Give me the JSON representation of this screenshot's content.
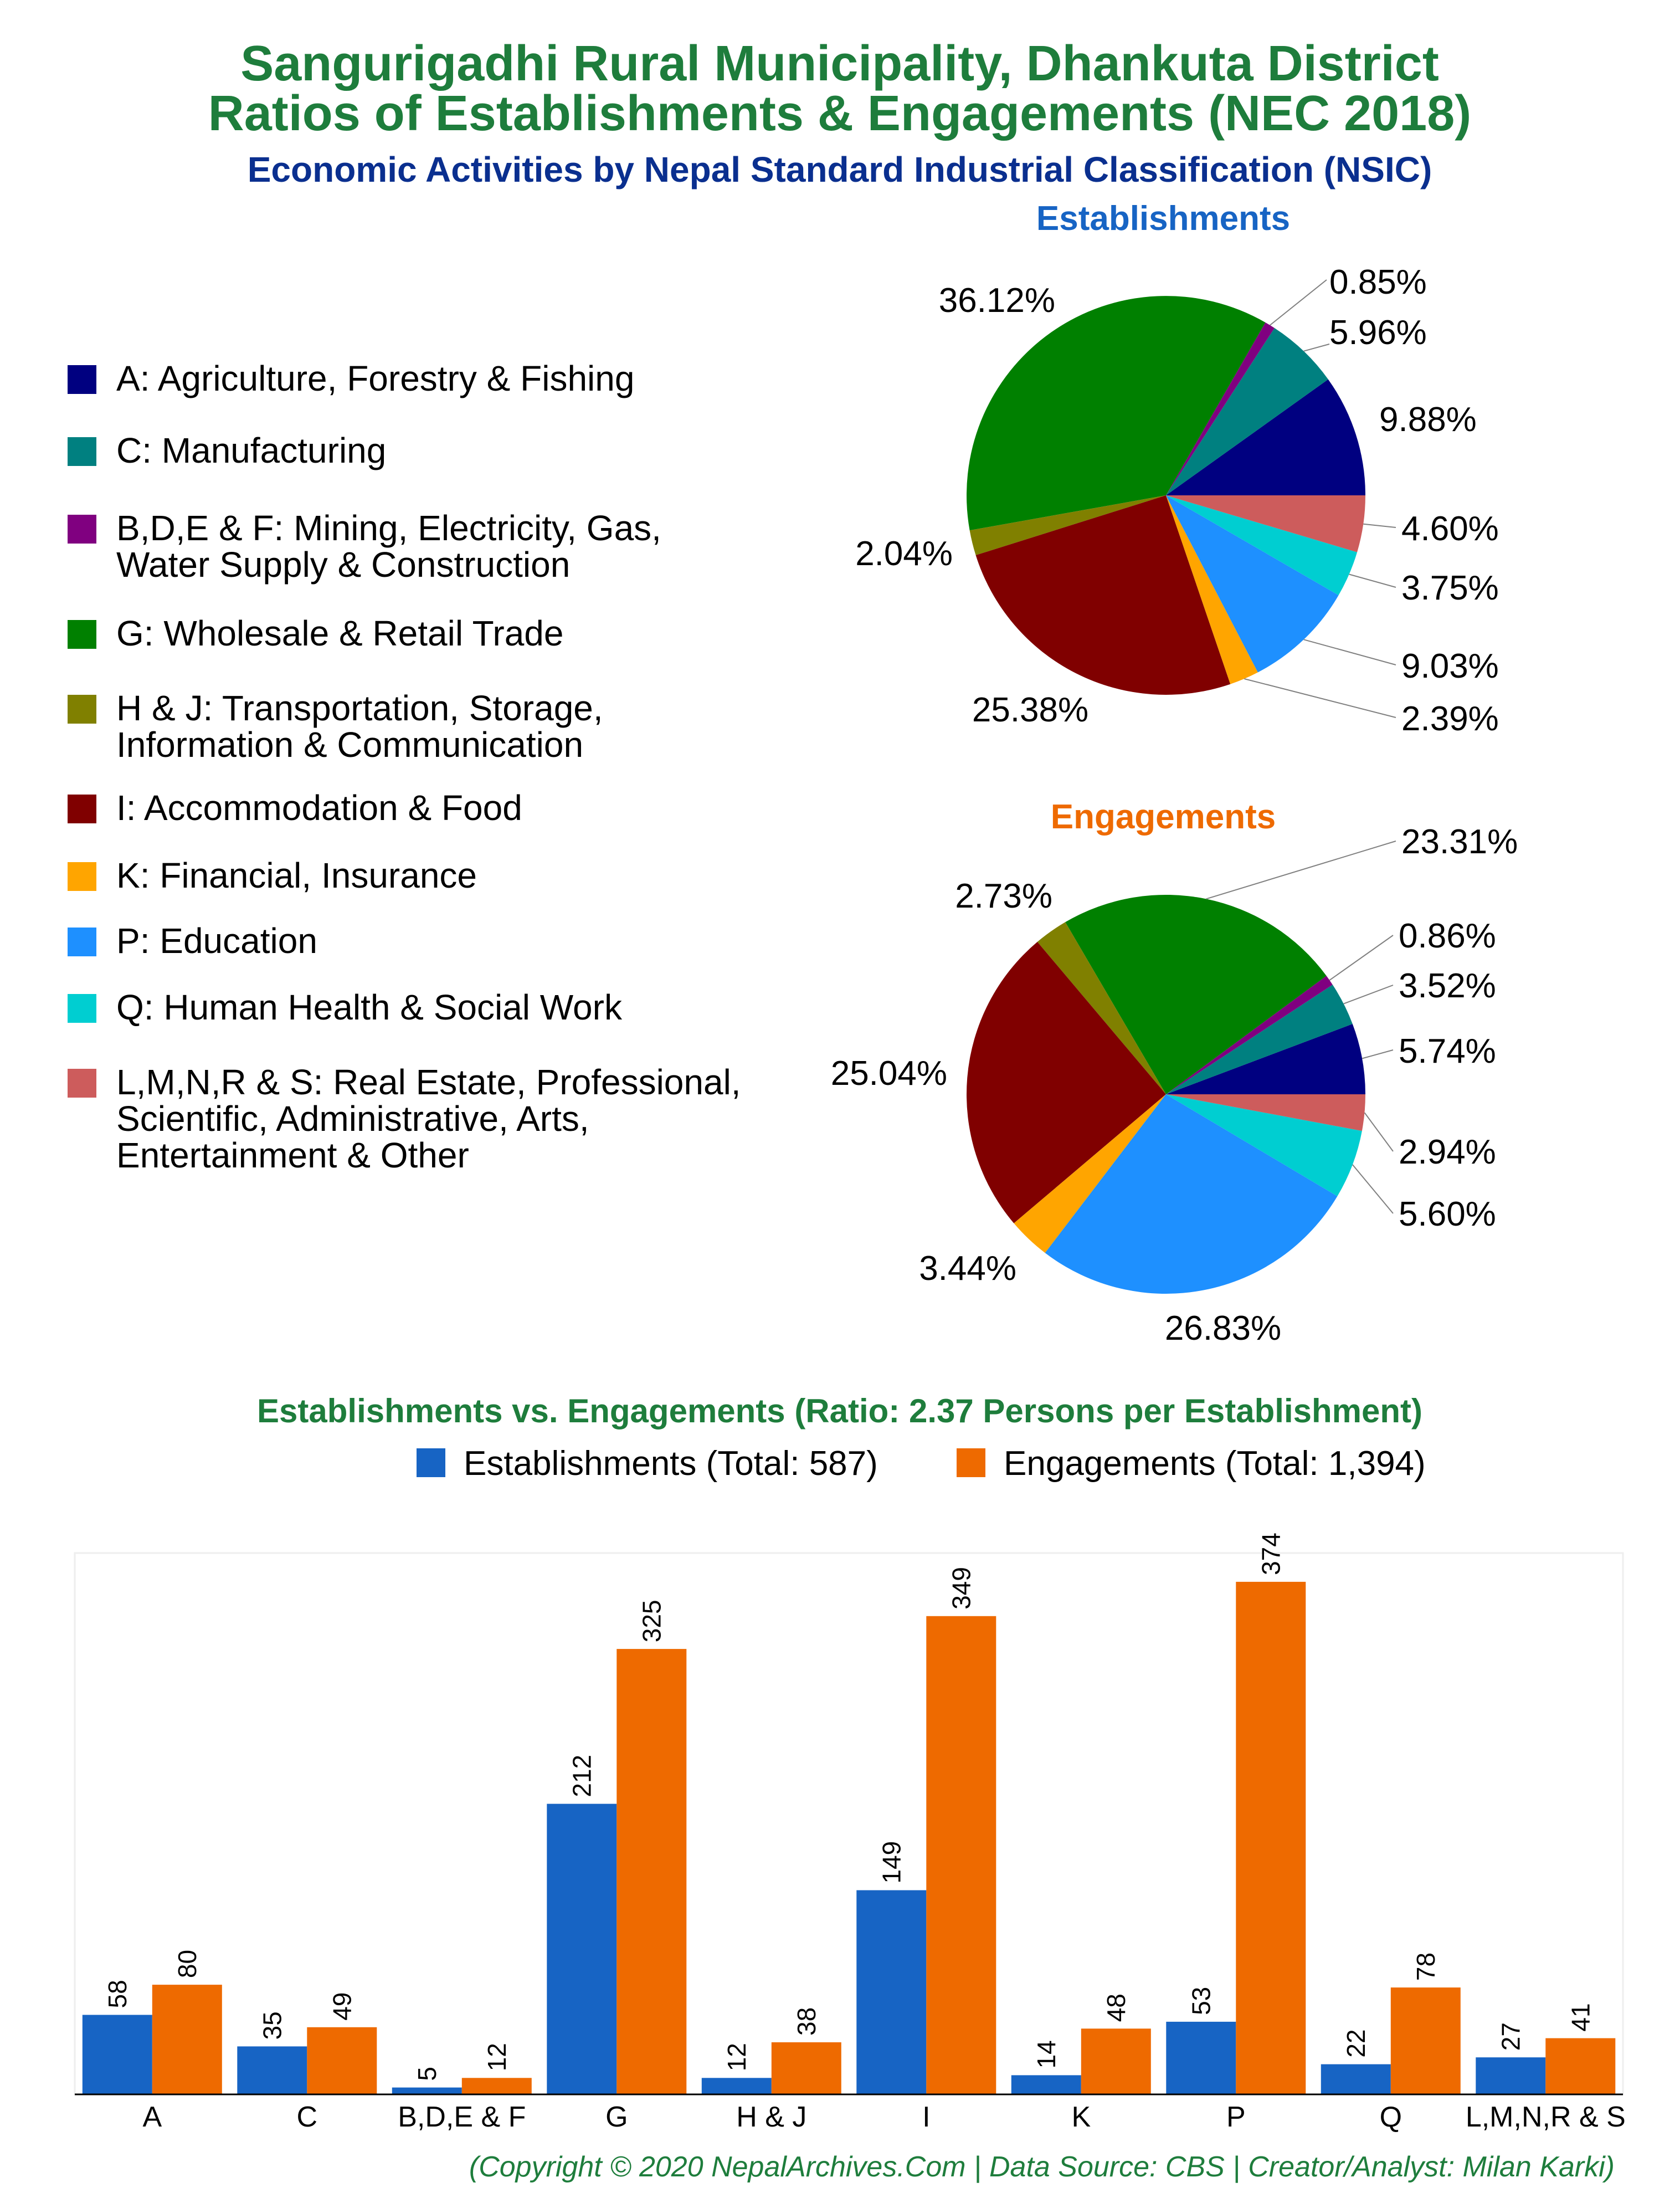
{
  "header": {
    "title_line1": "Sangurigadhi Rural Municipality, Dhankuta District",
    "title_line2": "Ratios of Establishments & Engagements (NEC 2018)",
    "subtitle": "Economic Activities by Nepal Standard Industrial Classification (NSIC)"
  },
  "colors": {
    "title": "#1e7d3c",
    "subtitle": "#0a2f8f",
    "establishments": "#1764c4",
    "engagements": "#ee6a00",
    "establishments_pie_title": "#1764c4",
    "engagements_pie_title": "#ee6a00"
  },
  "legend": [
    {
      "label": "A: Agriculture, Forestry & Fishing",
      "color": "#000080"
    },
    {
      "label": "C: Manufacturing",
      "color": "#008080"
    },
    {
      "label": "B,D,E & F: Mining, Electricity, Gas,|Water Supply & Construction",
      "color": "#800080"
    },
    {
      "label": "G: Wholesale & Retail Trade",
      "color": "#008000"
    },
    {
      "label": "H & J: Transportation, Storage,|Information & Communication",
      "color": "#808000"
    },
    {
      "label": "I: Accommodation & Food",
      "color": "#800000"
    },
    {
      "label": "K: Financial, Insurance",
      "color": "#ffa500"
    },
    {
      "label": "P: Education",
      "color": "#1e90ff"
    },
    {
      "label": "Q: Human Health & Social Work",
      "color": "#00ced1"
    },
    {
      "label": "L,M,N,R & S: Real Estate, Professional,|Scientific, Administrative, Arts,|Entertainment & Other",
      "color": "#cd5c5c"
    }
  ],
  "chart_data": [
    {
      "type": "pie",
      "title": "Establishments",
      "categories": [
        "A",
        "C",
        "B,D,E & F",
        "G",
        "H & J",
        "I",
        "K",
        "P",
        "Q",
        "L,M,N,R & S"
      ],
      "values": [
        9.88,
        5.96,
        0.85,
        36.12,
        2.04,
        25.38,
        2.39,
        9.03,
        3.75,
        4.6
      ],
      "labels": [
        "9.88%",
        "5.96%",
        "0.85%",
        "36.12%",
        "2.04%",
        "25.38%",
        "2.39%",
        "9.03%",
        "3.75%",
        "4.60%"
      ]
    },
    {
      "type": "pie",
      "title": "Engagements",
      "categories": [
        "A",
        "C",
        "B,D,E & F",
        "G",
        "H & J",
        "I",
        "K",
        "P",
        "Q",
        "L,M,N,R & S"
      ],
      "values": [
        5.74,
        3.52,
        0.86,
        23.31,
        2.73,
        25.04,
        3.44,
        26.83,
        5.6,
        2.94
      ],
      "labels": [
        "5.74%",
        "3.52%",
        "0.86%",
        "23.31%",
        "2.73%",
        "25.04%",
        "3.44%",
        "26.83%",
        "5.60%",
        "2.94%"
      ]
    },
    {
      "type": "bar",
      "title": "Establishments vs. Engagements (Ratio: 2.37 Persons per Establishment)",
      "categories": [
        "A",
        "C",
        "B,D,E & F",
        "G",
        "H & J",
        "I",
        "K",
        "P",
        "Q",
        "L,M,N,R & S"
      ],
      "series": [
        {
          "name": "Establishments (Total: 587)",
          "values": [
            58,
            35,
            5,
            212,
            12,
            149,
            14,
            53,
            22,
            27
          ]
        },
        {
          "name": "Engagements (Total: 1,394)",
          "values": [
            80,
            49,
            12,
            325,
            38,
            349,
            48,
            374,
            78,
            41
          ]
        }
      ],
      "ylim": [
        0,
        395
      ],
      "legend_position": "top"
    }
  ],
  "footer": {
    "credit": "(Copyright © 2020 NepalArchives.Com | Data Source: CBS | Creator/Analyst: Milan Karki)"
  }
}
